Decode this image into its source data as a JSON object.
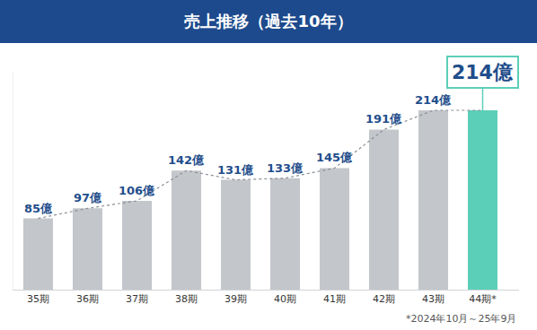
{
  "chart_data": {
    "type": "bar",
    "title": "売上推移（過去10年）",
    "categories": [
      "35期",
      "36期",
      "37期",
      "38期",
      "39期",
      "40期",
      "41期",
      "42期",
      "43期",
      "44期*"
    ],
    "values": [
      85,
      97,
      106,
      142,
      131,
      133,
      145,
      191,
      214,
      214
    ],
    "value_labels": [
      "85億",
      "97億",
      "106億",
      "142億",
      "131億",
      "133億",
      "145億",
      "191億",
      "214億",
      "214億"
    ],
    "colors": [
      "#c3c6ca",
      "#c3c6ca",
      "#c3c6ca",
      "#c3c6ca",
      "#c3c6ca",
      "#c3c6ca",
      "#c3c6ca",
      "#c3c6ca",
      "#c3c6ca",
      "#5ccfb8"
    ],
    "data_labels": true,
    "tick_labels": "x",
    "grid": false,
    "ylim": [
      0,
      260
    ],
    "note": "*2024年10月～25年9月"
  }
}
